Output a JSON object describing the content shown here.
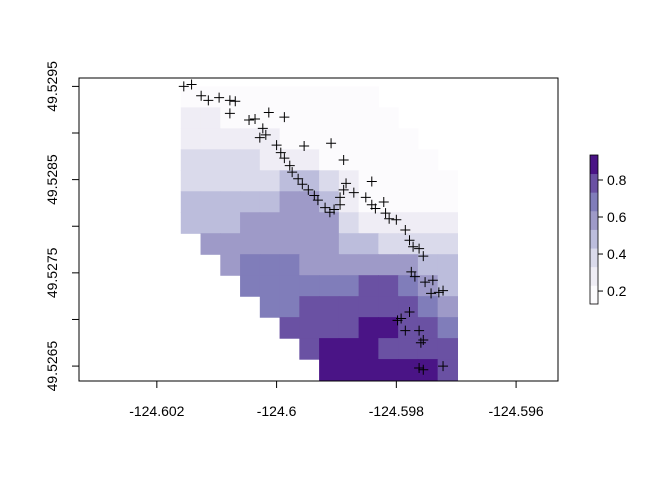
{
  "chart_data": {
    "type": "raster",
    "xlim": [
      -124.6033,
      -124.5953
    ],
    "ylim": [
      49.52634,
      49.52959
    ],
    "xticks": [
      -124.602,
      -124.6,
      -124.598,
      -124.596
    ],
    "yticks": [
      49.5265,
      49.5275,
      49.5285,
      49.5295
    ],
    "yticks_minor": [
      49.527,
      49.528,
      49.529
    ],
    "raster": {
      "x0": -124.6016,
      "dx": 0.00033,
      "y0": 49.5295,
      "dy": 0.000225,
      "values": [
        [
          0.2,
          0.2,
          0.15,
          0.15,
          0.15,
          0.15,
          0.15,
          0.15,
          0.15,
          0.15,
          null,
          null,
          null,
          null
        ],
        [
          0.25,
          0.25,
          0.2,
          0.2,
          0.15,
          0.15,
          0.15,
          0.15,
          0.15,
          0.15,
          0.15,
          null,
          null,
          null
        ],
        [
          0.3,
          0.3,
          0.3,
          0.25,
          0.25,
          0.2,
          0.2,
          0.15,
          0.15,
          0.15,
          0.15,
          0.15,
          null,
          null
        ],
        [
          0.35,
          0.35,
          0.35,
          0.35,
          0.3,
          0.3,
          0.25,
          0.2,
          0.15,
          0.15,
          0.15,
          0.15,
          0.15,
          null
        ],
        [
          0.4,
          0.4,
          0.4,
          0.4,
          0.4,
          0.45,
          0.5,
          0.35,
          0.25,
          0.15,
          0.15,
          0.15,
          0.15,
          0.15
        ],
        [
          0.45,
          0.45,
          0.45,
          0.5,
          0.5,
          0.55,
          0.6,
          0.5,
          0.3,
          0.2,
          0.15,
          0.15,
          0.2,
          0.2
        ],
        [
          0.5,
          0.5,
          0.5,
          0.55,
          0.55,
          0.6,
          0.6,
          0.55,
          0.4,
          0.3,
          0.25,
          0.25,
          0.3,
          0.3
        ],
        [
          null,
          0.55,
          0.55,
          0.6,
          0.6,
          0.6,
          0.6,
          0.55,
          0.5,
          0.45,
          0.4,
          0.4,
          0.4,
          0.35
        ],
        [
          null,
          null,
          0.6,
          0.65,
          0.65,
          0.65,
          0.6,
          0.6,
          0.6,
          0.6,
          0.55,
          0.55,
          0.5,
          0.45
        ],
        [
          null,
          null,
          null,
          0.65,
          0.7,
          0.7,
          0.7,
          0.7,
          0.7,
          0.75,
          0.75,
          0.7,
          0.6,
          0.5
        ],
        [
          null,
          null,
          null,
          null,
          0.7,
          0.7,
          0.75,
          0.75,
          0.8,
          0.8,
          0.8,
          0.8,
          0.7,
          0.6
        ],
        [
          null,
          null,
          null,
          null,
          null,
          0.75,
          0.75,
          0.8,
          0.8,
          0.85,
          0.85,
          0.8,
          0.75,
          0.7
        ],
        [
          null,
          null,
          null,
          null,
          null,
          null,
          0.8,
          0.85,
          0.85,
          0.85,
          0.8,
          0.8,
          0.8,
          0.75
        ],
        [
          null,
          null,
          null,
          null,
          null,
          null,
          null,
          0.9,
          0.9,
          0.9,
          0.9,
          0.85,
          0.85,
          0.8
        ]
      ]
    },
    "zlim": [
      0.13,
      0.935
    ],
    "colors": [
      "#fcfbfd",
      "#efedf5",
      "#dadaeb",
      "#bcbddc",
      "#9e9ac8",
      "#807dba",
      "#6a51a3",
      "#4a1486"
    ],
    "colorbar_ticks": [
      0.2,
      0.4,
      0.6,
      0.8
    ],
    "point_color": "#000000",
    "points": {
      "x": [
        -124.60155,
        -124.60142,
        -124.60126,
        -124.60114,
        -124.60096,
        -124.60078,
        -124.60069,
        -124.60078,
        -124.60046,
        -124.60036,
        -124.60013,
        -124.59987,
        -124.60023,
        -124.60018,
        -124.60028,
        -124.6,
        -124.59993,
        -124.59954,
        -124.59909,
        -124.59987,
        -124.59978,
        -124.59888,
        -124.59974,
        -124.59964,
        -124.59957,
        -124.59947,
        -124.59937,
        -124.59931,
        -124.59919,
        -124.59911,
        -124.59904,
        -124.59894,
        -124.59888,
        -124.59884,
        -124.59894,
        -124.59871,
        -124.59841,
        -124.59851,
        -124.59841,
        -124.59835,
        -124.59821,
        -124.59818,
        -124.59812,
        -124.598,
        -124.59785,
        -124.59778,
        -124.59772,
        -124.59762,
        -124.59755,
        -124.59775,
        -124.59769,
        -124.59752,
        -124.59739,
        -124.59742,
        -124.59729,
        -124.59722,
        -124.59778,
        -124.59792,
        -124.59798,
        -124.59785,
        -124.59762,
        -124.59755,
        -124.59759,
        -124.59762,
        -124.59755,
        -124.59722
      ],
      "y": [
        49.5295,
        49.52952,
        49.5294,
        49.52935,
        49.52938,
        49.52935,
        49.52934,
        49.52921,
        49.52914,
        49.52915,
        49.52922,
        49.52917,
        49.52905,
        49.52898,
        49.52895,
        49.52887,
        49.52879,
        49.52886,
        49.52889,
        49.52873,
        49.52865,
        49.52871,
        49.52858,
        49.52851,
        49.52845,
        49.52839,
        49.52833,
        49.52828,
        49.5282,
        49.52815,
        49.52818,
        49.52831,
        49.52839,
        49.52846,
        49.52823,
        49.52836,
        49.52848,
        49.52831,
        49.52823,
        49.52819,
        49.52826,
        49.52814,
        49.52808,
        49.52807,
        49.52796,
        49.52785,
        49.52778,
        49.52776,
        49.52768,
        49.52751,
        49.52746,
        49.5274,
        49.52742,
        49.52728,
        49.52729,
        49.52731,
        49.52708,
        49.52701,
        49.52699,
        49.52688,
        49.52688,
        49.52678,
        49.52675,
        49.52648,
        49.52646,
        49.5265
      ]
    }
  }
}
